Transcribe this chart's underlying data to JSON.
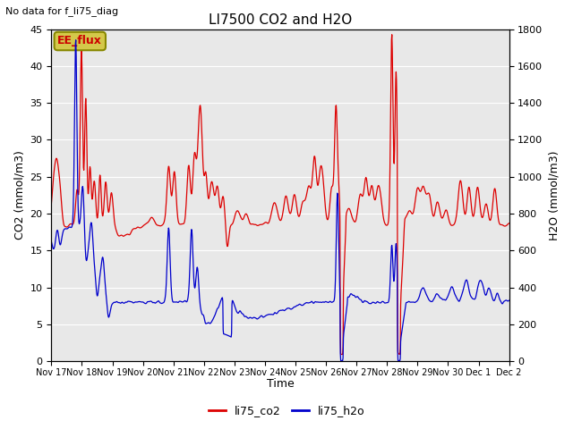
{
  "title": "LI7500 CO2 and H2O",
  "top_left_text": "No data for f_li75_diag",
  "annotation_box": "EE_flux",
  "xlabel": "Time",
  "ylabel_left": "CO2 (mmol/m3)",
  "ylabel_right": "H2O (mmol/m3)",
  "ylim_left": [
    0,
    45
  ],
  "ylim_right": [
    0,
    1800
  ],
  "yticks_left": [
    0,
    5,
    10,
    15,
    20,
    25,
    30,
    35,
    40,
    45
  ],
  "yticks_right": [
    0,
    200,
    400,
    600,
    800,
    1000,
    1200,
    1400,
    1600,
    1800
  ],
  "xtick_labels": [
    "Nov 17",
    "Nov 18",
    "Nov 19",
    "Nov 20",
    "Nov 21",
    "Nov 22",
    "Nov 23",
    "Nov 24",
    "Nov 25",
    "Nov 26",
    "Nov 27",
    "Nov 28",
    "Nov 29",
    "Nov 30",
    "Dec 1",
    "Dec 2"
  ],
  "co2_color": "#dd0000",
  "h2o_color": "#0000cc",
  "bg_color": "#ffffff",
  "plot_bg_color": "#e8e8e8",
  "legend_labels": [
    "li75_co2",
    "li75_h2o"
  ],
  "h2o_scale": 40.0,
  "grid_color": "#ffffff",
  "annotation_bg": "#d4c84a",
  "annotation_border": "#888800",
  "fig_width": 6.4,
  "fig_height": 4.8,
  "dpi": 100
}
